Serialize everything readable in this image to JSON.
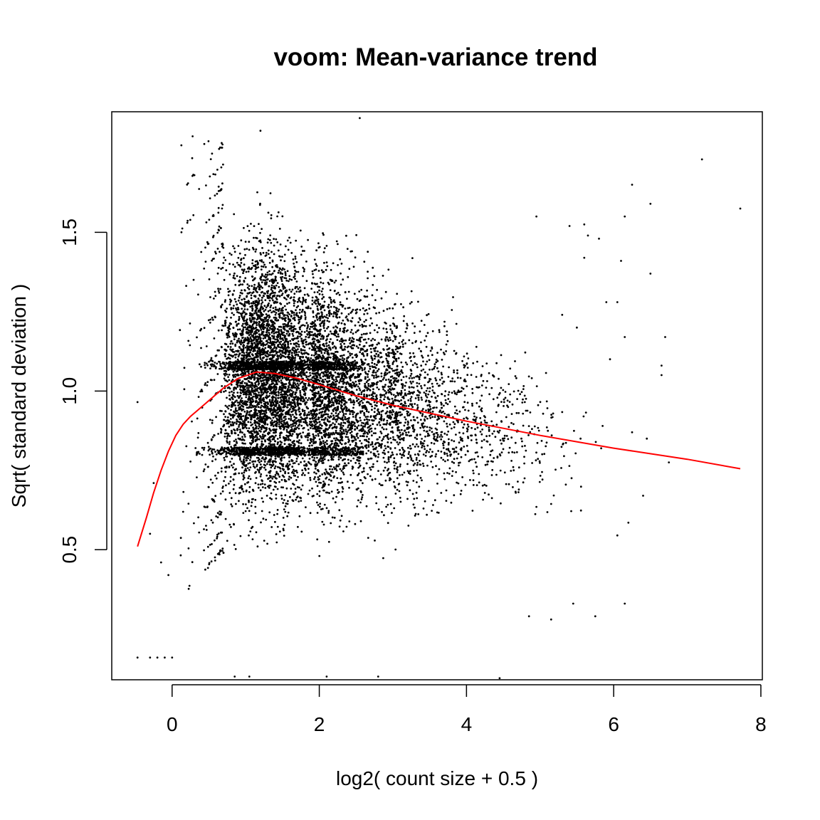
{
  "chart_data": {
    "type": "scatter",
    "title": "voom: Mean-variance trend",
    "xlabel": "log2( count size + 0.5 )",
    "ylabel": "Sqrt( standard deviation )",
    "xlim": [
      -0.82,
      8.02
    ],
    "ylim": [
      0.09,
      1.88
    ],
    "x_ticks": [
      {
        "value": 0,
        "label": "0"
      },
      {
        "value": 2,
        "label": "2"
      },
      {
        "value": 4,
        "label": "4"
      },
      {
        "value": 6,
        "label": "6"
      },
      {
        "value": 8,
        "label": "8"
      }
    ],
    "y_ticks": [
      {
        "value": 0.5,
        "label": "0.5"
      },
      {
        "value": 1.0,
        "label": "1.0"
      },
      {
        "value": 1.5,
        "label": "1.5"
      }
    ],
    "grid": false,
    "legend": "none",
    "point_color": "#000000",
    "trend_color": "#ff0000",
    "trend_line": {
      "x": [
        -0.47,
        -0.35,
        -0.25,
        -0.15,
        -0.05,
        0.05,
        0.15,
        0.25,
        0.35,
        0.5,
        0.7,
        0.9,
        1.15,
        1.4,
        1.7,
        2.0,
        2.5,
        3.0,
        4.0,
        5.0,
        6.0,
        7.0,
        7.72
      ],
      "y": [
        0.51,
        0.6,
        0.68,
        0.75,
        0.81,
        0.86,
        0.895,
        0.92,
        0.94,
        0.97,
        1.01,
        1.04,
        1.06,
        1.055,
        1.04,
        1.02,
        0.985,
        0.955,
        0.905,
        0.86,
        0.82,
        0.785,
        0.755
      ]
    },
    "points": [
      [
        -0.47,
        0.965
      ],
      [
        -0.47,
        0.16
      ],
      [
        -0.3,
        0.55
      ],
      [
        -0.3,
        0.16
      ],
      [
        -0.25,
        0.71
      ],
      [
        -0.2,
        0.16
      ],
      [
        -0.15,
        0.46
      ],
      [
        -0.1,
        0.16
      ],
      [
        -0.05,
        0.42
      ],
      [
        0.0,
        0.16
      ],
      [
        0.85,
        0.1
      ],
      [
        1.05,
        0.1
      ],
      [
        2.1,
        0.1
      ],
      [
        2.8,
        0.1
      ],
      [
        4.45,
        0.095
      ],
      [
        2.55,
        1.86
      ],
      [
        1.2,
        1.82
      ],
      [
        7.2,
        1.73
      ],
      [
        7.72,
        1.575
      ],
      [
        6.5,
        1.59
      ],
      [
        6.25,
        1.65
      ],
      [
        6.15,
        1.55
      ],
      [
        5.6,
        1.525
      ],
      [
        5.6,
        1.42
      ],
      [
        6.1,
        1.41
      ],
      [
        6.5,
        1.37
      ],
      [
        6.05,
        1.28
      ],
      [
        6.15,
        1.17
      ],
      [
        6.7,
        1.17
      ],
      [
        5.95,
        1.1
      ],
      [
        6.65,
        1.08
      ],
      [
        6.65,
        1.05
      ],
      [
        5.85,
        0.89
      ],
      [
        6.45,
        0.85
      ],
      [
        6.25,
        0.87
      ],
      [
        6.75,
        0.775
      ],
      [
        5.55,
        0.85
      ],
      [
        6.4,
        0.67
      ],
      [
        6.2,
        0.585
      ],
      [
        6.05,
        0.545
      ],
      [
        5.35,
        0.705
      ],
      [
        6.15,
        0.33
      ],
      [
        5.45,
        0.33
      ],
      [
        5.15,
        0.28
      ],
      [
        5.75,
        0.29
      ],
      [
        4.85,
        0.29
      ],
      [
        4.95,
        1.55
      ],
      [
        5.4,
        1.52
      ],
      [
        5.65,
        1.49
      ],
      [
        5.8,
        1.48
      ],
      [
        5.3,
        1.24
      ],
      [
        5.5,
        1.2
      ],
      [
        5.9,
        1.28
      ]
    ],
    "point_cloud_estimate": {
      "total_points": 9800,
      "x_center": 1.3,
      "x_range": [
        -0.47,
        7.72
      ],
      "y_band_range": [
        0.16,
        1.82
      ],
      "dense_horizontal_rows_y": [
        0.81,
        1.08
      ]
    }
  }
}
